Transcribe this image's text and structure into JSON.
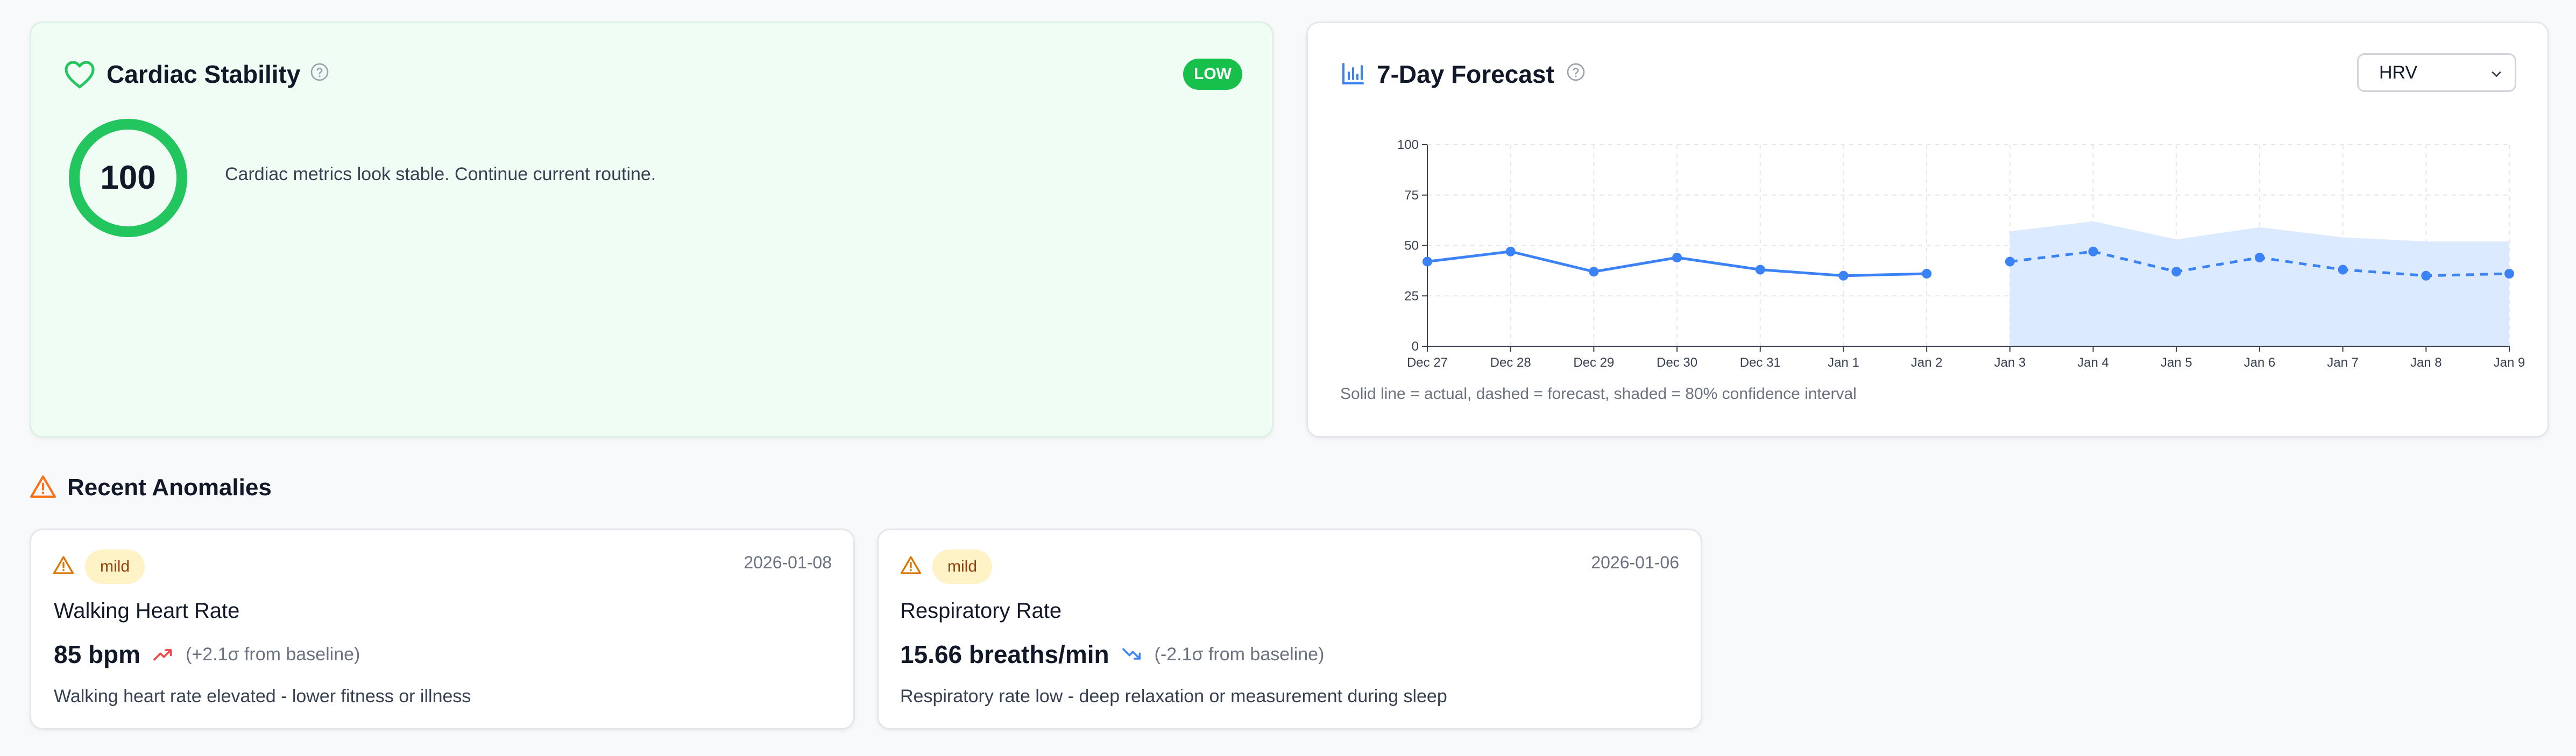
{
  "stability": {
    "title": "Cardiac Stability",
    "badge": "LOW",
    "score": "100",
    "message": "Cardiac metrics look stable. Continue current routine."
  },
  "forecast": {
    "title": "7-Day Forecast",
    "metric_select": "HRV",
    "caption": "Solid line = actual, dashed = forecast, shaded = 80% confidence interval"
  },
  "chart_data": {
    "type": "line",
    "categories": [
      "Dec 27",
      "Dec 28",
      "Dec 29",
      "Dec 30",
      "Dec 31",
      "Jan 1",
      "Jan 2",
      "Jan 3",
      "Jan 4",
      "Jan 5",
      "Jan 6",
      "Jan 7",
      "Jan 8",
      "Jan 9"
    ],
    "series": [
      {
        "role": "actual",
        "style": "solid",
        "values": [
          42,
          47,
          37,
          44,
          38,
          35,
          36,
          null,
          null,
          null,
          null,
          null,
          null,
          null
        ]
      },
      {
        "role": "forecast",
        "style": "dashed",
        "values": [
          null,
          null,
          null,
          null,
          null,
          null,
          null,
          42,
          47,
          37,
          44,
          38,
          35,
          36
        ]
      },
      {
        "role": "confidence_upper",
        "values": [
          null,
          null,
          null,
          null,
          null,
          null,
          null,
          57,
          62,
          53,
          59,
          54,
          52,
          52
        ]
      },
      {
        "role": "confidence_lower",
        "values": [
          null,
          null,
          null,
          null,
          null,
          null,
          null,
          0,
          0,
          0,
          0,
          0,
          0,
          0
        ]
      }
    ],
    "yticks": [
      "0",
      "25",
      "50",
      "75",
      "100"
    ],
    "ylim": [
      0,
      100
    ],
    "grid": true,
    "colors": {
      "line": "#3b82f6",
      "band": "#dbeafe",
      "grid": "#e5e7eb"
    }
  },
  "anomalies": {
    "section_title": "Recent Anomalies",
    "items": [
      {
        "severity": "mild",
        "date": "2026-01-08",
        "metric": "Walking Heart Rate",
        "value": "85 bpm",
        "direction": "up",
        "deviation": "(+2.1σ from baseline)",
        "note": "Walking heart rate elevated - lower fitness or illness"
      },
      {
        "severity": "mild",
        "date": "2026-01-06",
        "metric": "Respiratory Rate",
        "value": "15.66 breaths/min",
        "direction": "down",
        "deviation": "(-2.1σ from baseline)",
        "note": "Respiratory rate low - deep relaxation or measurement during sleep"
      }
    ]
  },
  "icons": {
    "stability": "heart-icon",
    "forecast": "bar-chart-icon",
    "help": "question-circle-icon",
    "section": "warning-icon",
    "trend_up": "trending-up-icon",
    "trend_down": "trending-down-icon"
  },
  "colors": {
    "accent_green": "#22c55e",
    "accent_blue": "#3b82f6",
    "warning_orange": "#f97316",
    "warning_amber": "#d97706",
    "trend_up": "#ef4444",
    "trend_down": "#3b82f6"
  }
}
